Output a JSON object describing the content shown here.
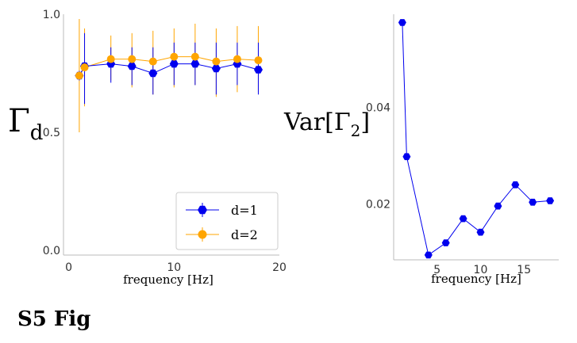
{
  "figure_label": "S5 Fig",
  "chart_data": [
    {
      "type": "scatter",
      "ylabel": "Γ",
      "ylabel_subscript": "d",
      "xlabel": "frequency [Hz]",
      "xlim": [
        -0.5,
        20
      ],
      "ylim": [
        -0.02,
        1.0
      ],
      "xticks": [
        0,
        10,
        20
      ],
      "yticks": [
        0.0,
        0.5,
        1.0
      ],
      "ytick_labels": [
        "0.0",
        "0.5",
        "1.0"
      ],
      "legend_position": "bottom-right",
      "series": [
        {
          "name": "d=1",
          "color": "#0000ee",
          "x": [
            1,
            1.5,
            4,
            6,
            8,
            10,
            12,
            14,
            16,
            18
          ],
          "y": [
            0.74,
            0.78,
            0.79,
            0.78,
            0.75,
            0.79,
            0.79,
            0.77,
            0.79,
            0.765
          ],
          "err_low": [
            0.72,
            0.62,
            0.71,
            0.7,
            0.66,
            0.7,
            0.7,
            0.66,
            0.7,
            0.66
          ],
          "err_high": [
            0.76,
            0.92,
            0.86,
            0.86,
            0.86,
            0.88,
            0.88,
            0.88,
            0.88,
            0.88
          ]
        },
        {
          "name": "d=2",
          "color": "#ffa500",
          "x": [
            1,
            1.5,
            4,
            6,
            8,
            10,
            12,
            14,
            16,
            18
          ],
          "y": [
            0.74,
            0.775,
            0.81,
            0.81,
            0.8,
            0.82,
            0.82,
            0.8,
            0.81,
            0.805
          ],
          "err_low": [
            0.5,
            0.61,
            0.72,
            0.69,
            0.66,
            0.69,
            0.7,
            0.65,
            0.67,
            0.67
          ],
          "err_high": [
            0.98,
            0.94,
            0.91,
            0.92,
            0.93,
            0.94,
            0.96,
            0.94,
            0.95,
            0.95
          ]
        }
      ]
    },
    {
      "type": "line",
      "ylabel": "Var[Γ",
      "ylabel_subscript": "2",
      "ylabel_suffix": "]",
      "xlabel": "frequency [Hz]",
      "xlim": [
        0,
        19
      ],
      "ylim": [
        0.0085,
        0.0592
      ],
      "xticks": [
        5,
        10,
        15
      ],
      "yticks": [
        0.02,
        0.04
      ],
      "ytick_labels": [
        "0.02",
        "0.04"
      ],
      "series": [
        {
          "color": "#0000ee",
          "x": [
            1,
            1.5,
            4,
            6,
            8,
            10,
            12,
            14,
            16,
            18
          ],
          "y": [
            0.0575,
            0.0298,
            0.0095,
            0.012,
            0.017,
            0.0142,
            0.0196,
            0.024,
            0.0204,
            0.0207
          ]
        }
      ]
    }
  ]
}
